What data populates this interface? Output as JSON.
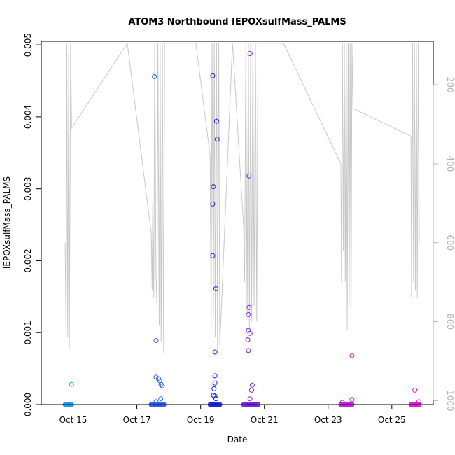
{
  "chart_data": {
    "type": "scatter",
    "title": "ATOM3 Northbound IEPOXsulfMass_PALMS",
    "xlabel": "Date",
    "ylabel": "IEPOXsulfMass_PALMS",
    "x_unit": "day of October 2017",
    "xlim": [
      14.0,
      26.3
    ],
    "ylim": [
      0,
      0.00505
    ],
    "x_ticks": [
      {
        "value": 15,
        "label": "Oct 15"
      },
      {
        "value": 17,
        "label": "Oct 17"
      },
      {
        "value": 19,
        "label": "Oct 19"
      },
      {
        "value": 21,
        "label": "Oct 21"
      },
      {
        "value": 23,
        "label": "Oct 23"
      },
      {
        "value": 25,
        "label": "Oct 25"
      }
    ],
    "y_ticks": [
      {
        "value": 0,
        "label": "0.000"
      },
      {
        "value": 0.001,
        "label": "0.001"
      },
      {
        "value": 0.002,
        "label": "0.002"
      },
      {
        "value": 0.003,
        "label": "0.003"
      },
      {
        "value": 0.004,
        "label": "0.004"
      },
      {
        "value": 0.005,
        "label": "0.005"
      }
    ],
    "right_axis": {
      "reversed": true,
      "lim": [
        90,
        1010
      ],
      "color": "#b3b3b3",
      "ticks": [
        {
          "value": 200,
          "label": "200"
        },
        {
          "value": 400,
          "label": "400"
        },
        {
          "value": 600,
          "label": "600"
        },
        {
          "value": 800,
          "label": "800"
        },
        {
          "value": 1000,
          "label": "1000"
        }
      ]
    },
    "grid": false,
    "legend": "none",
    "flights": [
      {
        "color": "#1e9bf0",
        "t0": 14.75,
        "t1": 14.95,
        "points": [
          [
            14.95,
            0.00028
          ]
        ]
      },
      {
        "color": "#2a5ef0",
        "t0": 17.45,
        "t1": 17.85,
        "points": [
          [
            17.55,
            0.00456
          ],
          [
            17.6,
            0.00089
          ],
          [
            17.6,
            0.00038
          ],
          [
            17.68,
            0.00036
          ],
          [
            17.72,
            0.00033
          ],
          [
            17.76,
            0.00028
          ],
          [
            17.8,
            0.00026
          ],
          [
            17.75,
            8e-05
          ],
          [
            17.6,
            4e-05
          ]
        ]
      },
      {
        "color": "#1a24e6",
        "t0": 19.3,
        "t1": 19.6,
        "points": [
          [
            19.38,
            0.00457
          ],
          [
            19.5,
            0.00394
          ],
          [
            19.52,
            0.00369
          ],
          [
            19.4,
            0.00303
          ],
          [
            19.38,
            0.00279
          ],
          [
            19.38,
            0.00207
          ],
          [
            19.48,
            0.00161
          ],
          [
            19.45,
            0.00073
          ],
          [
            19.45,
            0.0004
          ],
          [
            19.45,
            0.0003
          ],
          [
            19.42,
            0.00022
          ],
          [
            19.4,
            0.00013
          ],
          [
            19.45,
            0.00012
          ],
          [
            19.48,
            8e-05
          ]
        ]
      },
      {
        "color": "#7a22e8",
        "t0": 20.35,
        "t1": 20.8,
        "points": [
          [
            20.55,
            0.00488
          ],
          [
            20.52,
            0.00318
          ],
          [
            20.52,
            0.00135
          ],
          [
            20.5,
            0.00125
          ],
          [
            20.5,
            0.00103
          ],
          [
            20.55,
            0.00099
          ],
          [
            20.48,
            0.0009
          ],
          [
            20.5,
            0.00075
          ],
          [
            20.62,
            0.00027
          ],
          [
            20.6,
            0.0002
          ],
          [
            20.55,
            8e-05
          ]
        ]
      },
      {
        "color": "#c223e0",
        "t0": 23.4,
        "t1": 23.75,
        "points": [
          [
            23.75,
            0.00068
          ],
          [
            23.75,
            7e-05
          ],
          [
            23.45,
            3e-05
          ]
        ]
      },
      {
        "color": "#e61bc8",
        "t0": 25.6,
        "t1": 25.85,
        "points": [
          [
            25.72,
            0.0002
          ],
          [
            25.85,
            4e-05
          ]
        ]
      }
    ],
    "gray_series": {
      "color": "#c8c8c8",
      "right_axis_values": [
        [
          14.75,
          600
        ],
        [
          14.78,
          850
        ],
        [
          14.8,
          95
        ],
        [
          14.83,
          840
        ],
        [
          14.86,
          120
        ],
        [
          14.88,
          870
        ],
        [
          14.92,
          95
        ],
        [
          14.95,
          310
        ],
        [
          17.45,
          575
        ],
        [
          17.48,
          720
        ],
        [
          17.5,
          500
        ],
        [
          17.53,
          740
        ],
        [
          17.56,
          95
        ],
        [
          17.6,
          680
        ],
        [
          17.63,
          760
        ],
        [
          17.66,
          95
        ],
        [
          17.7,
          810
        ],
        [
          17.73,
          95
        ],
        [
          17.76,
          850
        ],
        [
          17.8,
          95
        ],
        [
          17.84,
          880
        ],
        [
          17.87,
          95
        ],
        [
          16.7,
          95
        ],
        [
          18.85,
          95
        ],
        [
          19.3,
          380
        ],
        [
          19.33,
          820
        ],
        [
          19.36,
          95
        ],
        [
          19.4,
          790
        ],
        [
          19.43,
          95
        ],
        [
          19.46,
          840
        ],
        [
          19.5,
          95
        ],
        [
          19.53,
          880
        ],
        [
          19.57,
          95
        ],
        [
          19.6,
          860
        ],
        [
          20.0,
          95
        ],
        [
          20.35,
          560
        ],
        [
          20.38,
          700
        ],
        [
          20.42,
          95
        ],
        [
          20.46,
          780
        ],
        [
          20.5,
          95
        ],
        [
          20.53,
          820
        ],
        [
          20.57,
          95
        ],
        [
          20.6,
          800
        ],
        [
          20.64,
          95
        ],
        [
          20.68,
          760
        ],
        [
          20.72,
          95
        ],
        [
          20.76,
          800
        ],
        [
          20.8,
          95
        ],
        [
          21.6,
          95
        ],
        [
          23.4,
          400
        ],
        [
          23.42,
          700
        ],
        [
          23.45,
          95
        ],
        [
          23.48,
          620
        ],
        [
          23.51,
          95
        ],
        [
          23.54,
          700
        ],
        [
          23.57,
          95
        ],
        [
          23.6,
          820
        ],
        [
          23.63,
          95
        ],
        [
          23.66,
          760
        ],
        [
          23.69,
          95
        ],
        [
          23.72,
          820
        ],
        [
          23.75,
          95
        ],
        [
          23.78,
          260
        ],
        [
          25.6,
          330
        ],
        [
          25.62,
          740
        ],
        [
          25.65,
          95
        ],
        [
          25.68,
          700
        ],
        [
          25.71,
          95
        ],
        [
          25.74,
          720
        ],
        [
          25.77,
          95
        ],
        [
          25.8,
          740
        ],
        [
          25.83,
          95
        ],
        [
          25.86,
          600
        ]
      ]
    }
  }
}
